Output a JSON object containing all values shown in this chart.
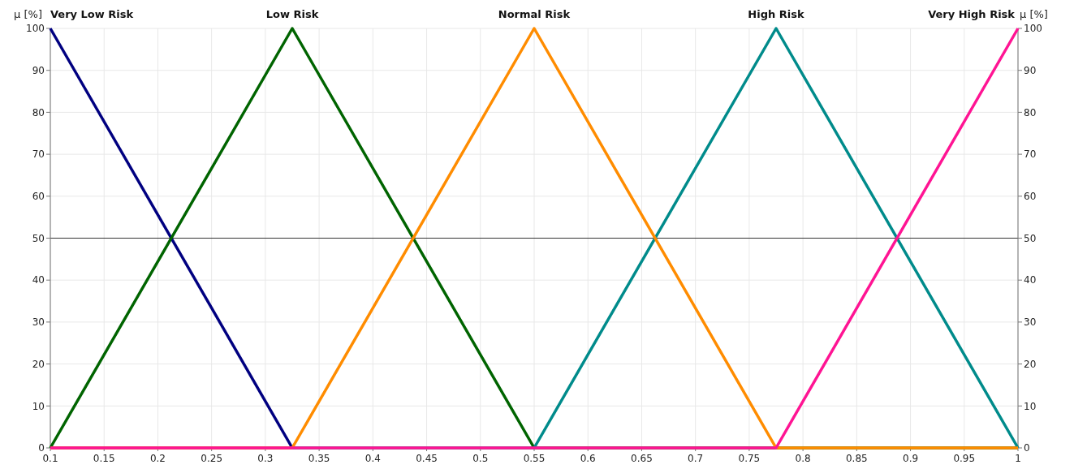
{
  "chart_data": {
    "type": "line",
    "ylabel": "μ [%]",
    "y2label": "μ [%]",
    "xlim": [
      0.1,
      1
    ],
    "xticks": [
      0.1,
      0.15,
      0.2,
      0.25,
      0.3,
      0.35,
      0.4,
      0.45,
      0.5,
      0.55,
      0.6,
      0.65,
      0.7,
      0.75,
      0.8,
      0.85,
      0.9,
      0.95,
      1
    ],
    "ylim": [
      0,
      100
    ],
    "yticks": [
      0,
      10,
      20,
      30,
      40,
      50,
      60,
      70,
      80,
      90,
      100
    ],
    "y2lim": [
      0,
      100
    ],
    "y2ticks": [
      0,
      10,
      20,
      30,
      40,
      50,
      60,
      70,
      80,
      90,
      100
    ],
    "grid": true,
    "marker": "none",
    "line_style": "solid",
    "ref_lines": [
      {
        "axis": "y",
        "value": 50,
        "color": "#333333"
      }
    ],
    "series": [
      {
        "name": "Very Low Risk",
        "color": "#000080",
        "x": [
          0.1,
          0.325
        ],
        "values": [
          100,
          0
        ]
      },
      {
        "name": "Low Risk",
        "color": "#006400",
        "x": [
          0.1,
          0.325,
          0.55,
          1
        ],
        "values": [
          0,
          100,
          0,
          0
        ]
      },
      {
        "name": "High Risk",
        "color": "#008b8b",
        "x": [
          0.1,
          0.55,
          0.775,
          1
        ],
        "values": [
          0,
          0,
          100,
          0
        ]
      },
      {
        "name": "Normal Risk",
        "color": "#ff8c00",
        "x": [
          0.1,
          0.325,
          0.55,
          0.775,
          1
        ],
        "values": [
          0,
          0,
          100,
          0,
          0
        ]
      },
      {
        "name": "Very High Risk",
        "color": "#ff1493",
        "x": [
          0.1,
          0.775,
          1
        ],
        "values": [
          0,
          0,
          100
        ]
      }
    ]
  }
}
